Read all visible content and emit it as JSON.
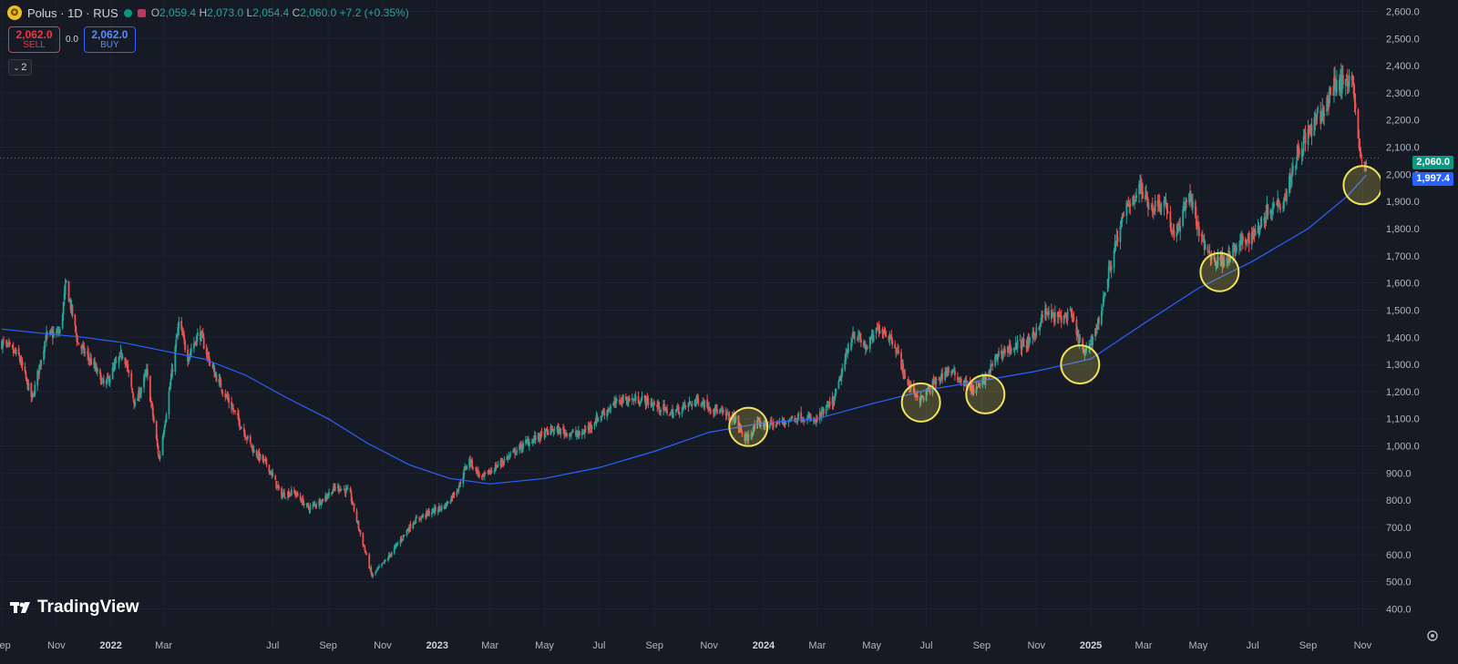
{
  "header": {
    "symbol": "Polus · 1D · RUS",
    "symbol_icon": "coin-icon",
    "ohlc": {
      "o_label": "O",
      "o": "2,059.4",
      "h_label": "H",
      "h": "2,073.0",
      "l_label": "L",
      "l": "2,054.4",
      "c_label": "C",
      "c": "2,060.0",
      "change": "+7.2 (+0.35%)"
    }
  },
  "trade": {
    "sell_price": "2,062.0",
    "sell_label": "SELL",
    "spread": "0.0",
    "buy_price": "2,062.0",
    "buy_label": "BUY"
  },
  "indicator_toggle": "2",
  "logo": "TradingView",
  "price_tags": {
    "last": "2,060.0",
    "ma": "1,997.4"
  },
  "colors": {
    "up": "#26a69a",
    "down": "#ef5350",
    "ma": "#2962ff",
    "circle": "#f2e35b",
    "background": "#161a25"
  },
  "chart_data": {
    "type": "candlestick",
    "y_ticks": [
      400,
      500,
      600,
      700,
      800,
      900,
      1000,
      1100,
      1200,
      1300,
      1400,
      1500,
      1600,
      1700,
      1800,
      1900,
      2000,
      2100,
      2200,
      2300,
      2400,
      2500,
      2600
    ],
    "y_tick_labels": [
      "400.0",
      "500.0",
      "600.0",
      "700.0",
      "800.0",
      "900.0",
      "1,000.0",
      "1,100.0",
      "1,200.0",
      "1,300.0",
      "1,400.0",
      "1,500.0",
      "1,600.0",
      "1,700.0",
      "1,800.0",
      "1,900.0",
      "2,000.0",
      "2,100.0",
      "2,200.0",
      "2,300.0",
      "2,400.0",
      "2,500.0",
      "2,600.0"
    ],
    "ylim": [
      400,
      2620
    ],
    "x_labels": [
      "Sep",
      "Nov",
      "2022",
      "Mar",
      "Jul",
      "Sep",
      "Nov",
      "2023",
      "Mar",
      "May",
      "Jul",
      "Sep",
      "Nov",
      "2024",
      "Mar",
      "May",
      "Jul",
      "Sep",
      "Nov",
      "2025",
      "Mar",
      "May",
      "Jul",
      "Sep",
      "Nov"
    ],
    "x_label_bold": [
      "2022",
      "2023",
      "2024",
      "2025"
    ],
    "price_path": [
      [
        "2021-09-01",
        1380
      ],
      [
        "2021-09-20",
        1330
      ],
      [
        "2021-10-05",
        1170
      ],
      [
        "2021-10-20",
        1400
      ],
      [
        "2021-11-05",
        1420
      ],
      [
        "2021-11-12",
        1600
      ],
      [
        "2021-11-25",
        1380
      ],
      [
        "2021-12-10",
        1310
      ],
      [
        "2021-12-25",
        1220
      ],
      [
        "2022-01-15",
        1350
      ],
      [
        "2022-01-28",
        1150
      ],
      [
        "2022-02-10",
        1270
      ],
      [
        "2022-02-24",
        950
      ],
      [
        "2022-03-05",
        1150
      ],
      [
        "2022-03-18",
        1450
      ],
      [
        "2022-03-28",
        1330
      ],
      [
        "2022-04-10",
        1420
      ],
      [
        "2022-04-25",
        1280
      ],
      [
        "2022-05-15",
        1150
      ],
      [
        "2022-06-10",
        980
      ],
      [
        "2022-06-25",
        930
      ],
      [
        "2022-07-10",
        820
      ],
      [
        "2022-07-25",
        830
      ],
      [
        "2022-08-10",
        770
      ],
      [
        "2022-08-25",
        800
      ],
      [
        "2022-09-10",
        850
      ],
      [
        "2022-09-25",
        830
      ],
      [
        "2022-10-05",
        700
      ],
      [
        "2022-10-20",
        520
      ],
      [
        "2022-11-05",
        580
      ],
      [
        "2022-11-20",
        650
      ],
      [
        "2022-12-05",
        720
      ],
      [
        "2022-12-20",
        750
      ],
      [
        "2023-01-10",
        780
      ],
      [
        "2023-01-25",
        850
      ],
      [
        "2023-02-05",
        950
      ],
      [
        "2023-02-20",
        880
      ],
      [
        "2023-03-10",
        930
      ],
      [
        "2023-04-10",
        1010
      ],
      [
        "2023-05-10",
        1060
      ],
      [
        "2023-06-10",
        1040
      ],
      [
        "2023-07-05",
        1120
      ],
      [
        "2023-07-25",
        1170
      ],
      [
        "2023-08-20",
        1170
      ],
      [
        "2023-09-20",
        1120
      ],
      [
        "2023-10-20",
        1170
      ],
      [
        "2023-11-15",
        1120
      ],
      [
        "2023-11-30",
        1100
      ],
      [
        "2023-12-12",
        1020
      ],
      [
        "2023-12-25",
        1080
      ],
      [
        "2024-01-15",
        1080
      ],
      [
        "2024-02-10",
        1110
      ],
      [
        "2024-02-28",
        1090
      ],
      [
        "2024-03-20",
        1170
      ],
      [
        "2024-04-10",
        1420
      ],
      [
        "2024-04-25",
        1360
      ],
      [
        "2024-05-10",
        1440
      ],
      [
        "2024-05-25",
        1390
      ],
      [
        "2024-06-10",
        1230
      ],
      [
        "2024-06-25",
        1170
      ],
      [
        "2024-07-10",
        1230
      ],
      [
        "2024-07-25",
        1280
      ],
      [
        "2024-08-10",
        1240
      ],
      [
        "2024-08-25",
        1200
      ],
      [
        "2024-09-05",
        1250
      ],
      [
        "2024-09-20",
        1340
      ],
      [
        "2024-10-10",
        1370
      ],
      [
        "2024-10-25",
        1380
      ],
      [
        "2024-11-10",
        1490
      ],
      [
        "2024-11-25",
        1470
      ],
      [
        "2024-12-10",
        1480
      ],
      [
        "2024-12-25",
        1330
      ],
      [
        "2025-01-10",
        1460
      ],
      [
        "2025-01-25",
        1700
      ],
      [
        "2025-02-10",
        1880
      ],
      [
        "2025-02-25",
        1950
      ],
      [
        "2025-03-10",
        1880
      ],
      [
        "2025-03-25",
        1900
      ],
      [
        "2025-04-05",
        1750
      ],
      [
        "2025-04-20",
        1940
      ],
      [
        "2025-05-05",
        1750
      ],
      [
        "2025-05-20",
        1680
      ],
      [
        "2025-06-05",
        1700
      ],
      [
        "2025-06-20",
        1750
      ],
      [
        "2025-07-05",
        1790
      ],
      [
        "2025-07-20",
        1880
      ],
      [
        "2025-08-05",
        1910
      ],
      [
        "2025-08-20",
        2080
      ],
      [
        "2025-09-05",
        2170
      ],
      [
        "2025-09-20",
        2240
      ],
      [
        "2025-10-01",
        2340
      ],
      [
        "2025-10-12",
        2330
      ],
      [
        "2025-10-20",
        2380
      ],
      [
        "2025-10-26",
        2150
      ],
      [
        "2025-11-01",
        2000
      ],
      [
        "2025-11-05",
        2060
      ]
    ],
    "ma_path": [
      [
        "2021-09-01",
        1430
      ],
      [
        "2021-10-15",
        1415
      ],
      [
        "2021-12-01",
        1400
      ],
      [
        "2022-01-15",
        1380
      ],
      [
        "2022-03-01",
        1350
      ],
      [
        "2022-04-15",
        1320
      ],
      [
        "2022-06-01",
        1260
      ],
      [
        "2022-07-15",
        1180
      ],
      [
        "2022-09-01",
        1100
      ],
      [
        "2022-10-15",
        1010
      ],
      [
        "2022-12-01",
        930
      ],
      [
        "2023-01-15",
        880
      ],
      [
        "2023-03-01",
        860
      ],
      [
        "2023-05-01",
        880
      ],
      [
        "2023-07-01",
        920
      ],
      [
        "2023-09-01",
        980
      ],
      [
        "2023-11-01",
        1050
      ],
      [
        "2024-01-01",
        1085
      ],
      [
        "2024-03-01",
        1100
      ],
      [
        "2024-05-01",
        1155
      ],
      [
        "2024-07-01",
        1205
      ],
      [
        "2024-09-01",
        1240
      ],
      [
        "2024-11-01",
        1275
      ],
      [
        "2025-01-01",
        1320
      ],
      [
        "2025-03-01",
        1450
      ],
      [
        "2025-05-01",
        1580
      ],
      [
        "2025-07-01",
        1680
      ],
      [
        "2025-09-01",
        1800
      ],
      [
        "2025-10-15",
        1920
      ],
      [
        "2025-11-05",
        1997
      ]
    ],
    "highlight_touches": [
      [
        "2023-12-15",
        1070
      ],
      [
        "2024-06-25",
        1160
      ],
      [
        "2024-09-05",
        1190
      ],
      [
        "2024-12-20",
        1300
      ],
      [
        "2025-05-25",
        1640
      ],
      [
        "2025-11-01",
        1960
      ]
    ]
  }
}
